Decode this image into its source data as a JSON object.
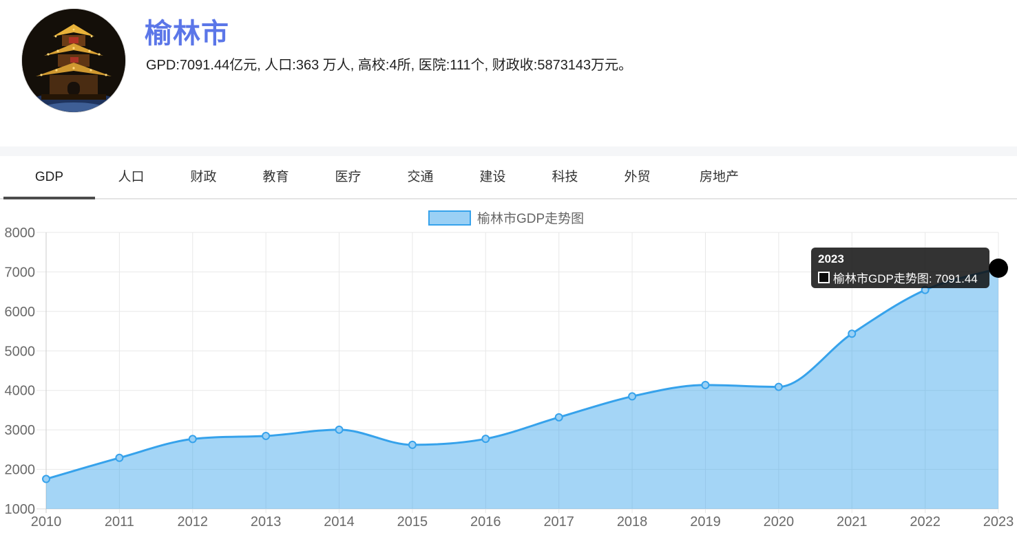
{
  "header": {
    "city_name": "榆林市",
    "summary": "GPD:7091.44亿元, 人口:363 万人, 高校:4所, 医院:111个, 财政收:5873143万元。",
    "title_color": "#5b76e8"
  },
  "tabs": {
    "items": [
      {
        "id": "gdp",
        "label": "GDP",
        "active": true
      },
      {
        "id": "population",
        "label": "人口",
        "active": false
      },
      {
        "id": "finance",
        "label": "财政",
        "active": false
      },
      {
        "id": "education",
        "label": "教育",
        "active": false
      },
      {
        "id": "medical",
        "label": "医疗",
        "active": false
      },
      {
        "id": "transport",
        "label": "交通",
        "active": false
      },
      {
        "id": "construction",
        "label": "建设",
        "active": false
      },
      {
        "id": "technology",
        "label": "科技",
        "active": false
      },
      {
        "id": "trade",
        "label": "外贸",
        "active": false
      },
      {
        "id": "realestate",
        "label": "房地产",
        "active": false
      }
    ]
  },
  "chart_data": {
    "type": "area",
    "title": "榆林市GDP走势图",
    "legend": [
      "榆林市GDP走势图"
    ],
    "legend_position": "top",
    "x": [
      "2010",
      "2011",
      "2012",
      "2013",
      "2014",
      "2015",
      "2016",
      "2017",
      "2018",
      "2019",
      "2020",
      "2021",
      "2022",
      "2023"
    ],
    "series": [
      {
        "name": "榆林市GDP走势图",
        "values": [
          1756.67,
          2292.26,
          2769.22,
          2846.75,
          3005.74,
          2621.3,
          2773.05,
          3318.39,
          3848.62,
          4136.28,
          4089.66,
          5435.18,
          6543.65,
          7091.44
        ]
      }
    ],
    "ylim": [
      1000,
      8000
    ],
    "yticks": [
      1000,
      2000,
      3000,
      4000,
      5000,
      6000,
      7000,
      8000
    ],
    "grid": true,
    "line_color": "#36a2eb",
    "fill_color": "rgba(54,162,235,0.45)",
    "point_fill": "#9ad0f5",
    "axis_label_color": "#696969",
    "hover_point": {
      "x": "2023",
      "value": 7091.44,
      "color": "#000000"
    }
  },
  "tooltip": {
    "title": "2023",
    "text": "榆林市GDP走势图: 7091.44"
  }
}
